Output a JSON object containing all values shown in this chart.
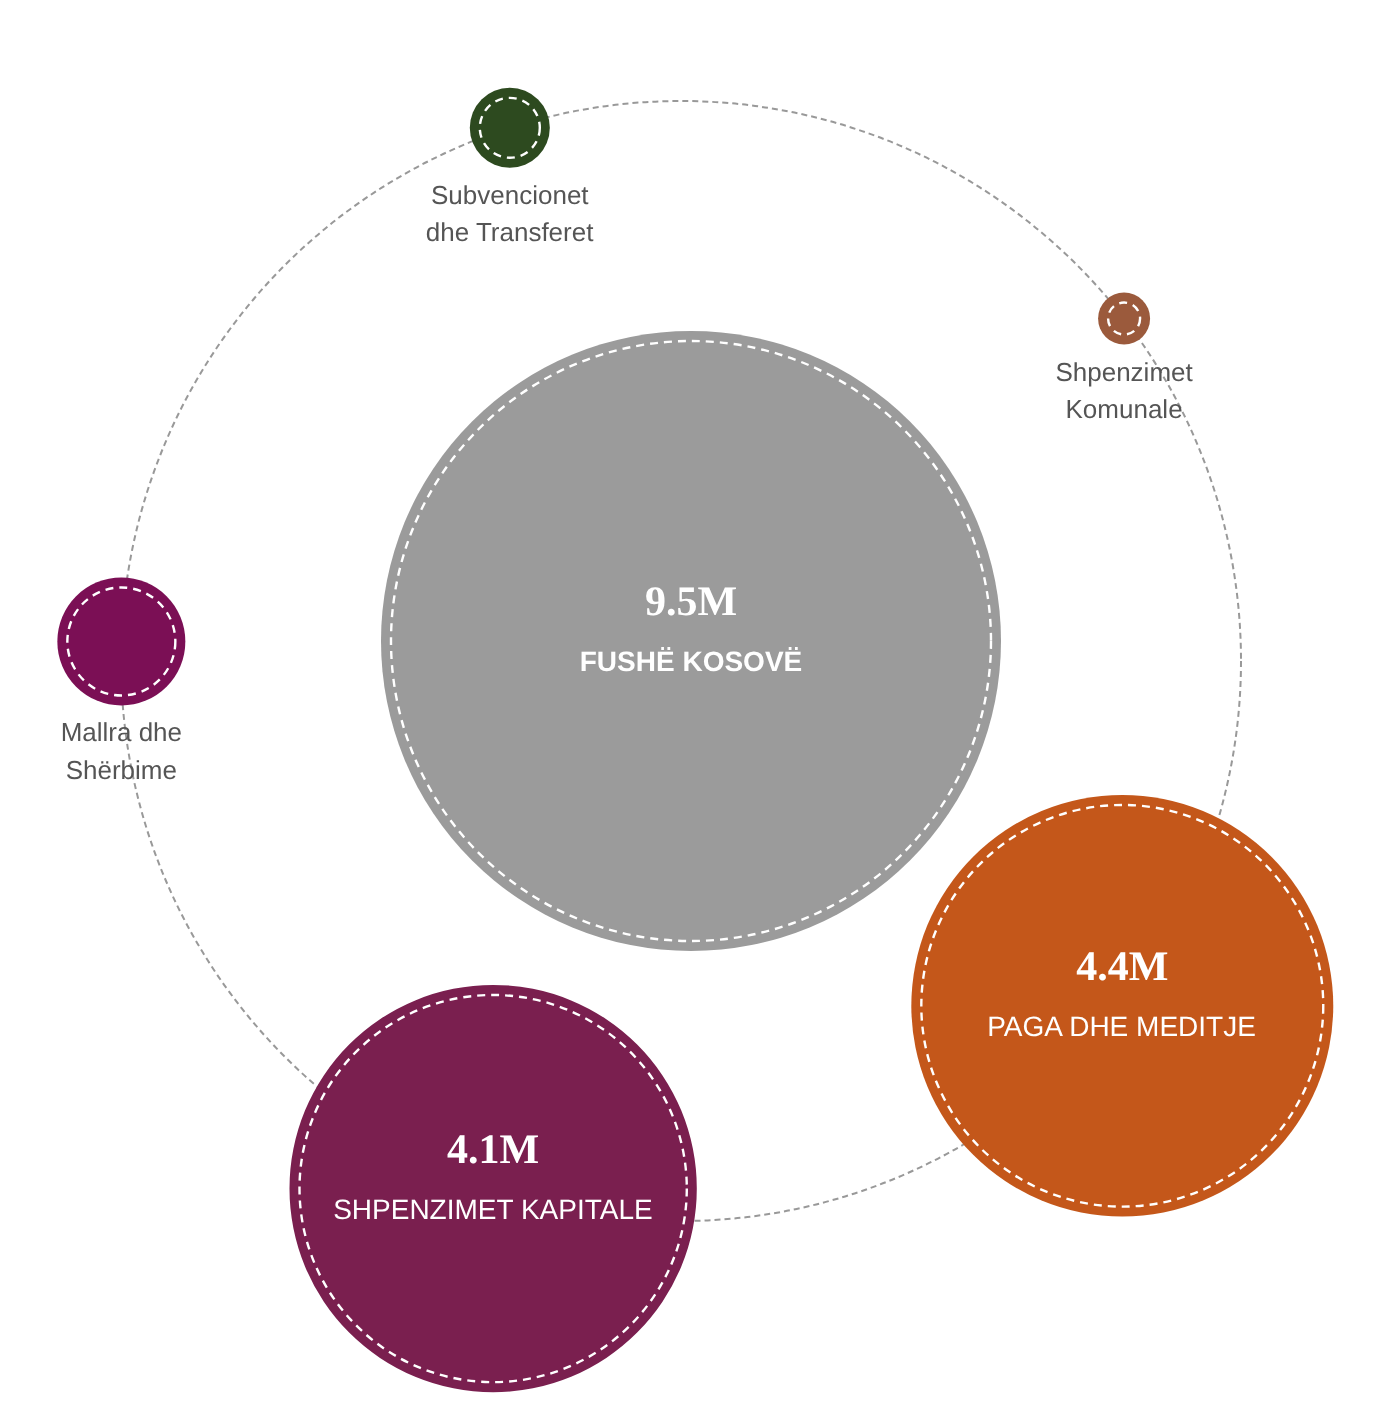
{
  "chart_data": {
    "type": "other",
    "categories": [
      "FUSHË KOSOVË",
      "PAGA DHE MEDITJE",
      "SHPENZIMET KAPITALE",
      "Subvencionet\ndhe Transferet",
      "Shpenzimet\nKomunale",
      "Mallra dhe\nShërbime"
    ],
    "values": [
      9.5,
      4.4,
      4.1,
      null,
      null,
      null
    ],
    "value_labels": [
      "9.5M",
      "4.4M",
      "4.1M",
      null,
      null,
      null
    ],
    "colors": [
      "#9b9b9b",
      "#c4571a",
      "#7a1f4f",
      "#2d4a1f",
      "#9b5a3c",
      "#7b0f55"
    ]
  }
}
